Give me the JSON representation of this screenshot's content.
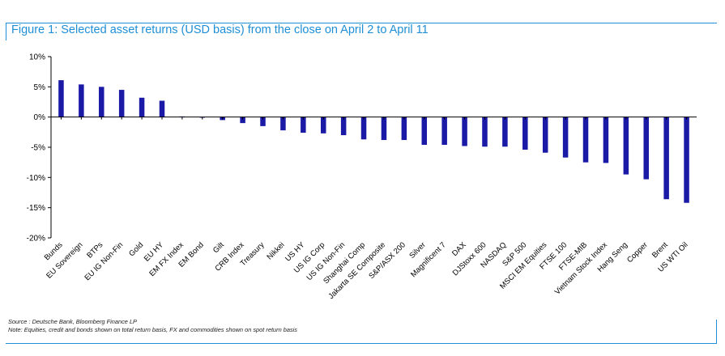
{
  "title": "Figure 1: Selected asset returns (USD basis) from the close on April 2 to April 11",
  "source": "Source : Deutsche Bank, Bloomberg Finance LP",
  "note": "Note: Equities, credit and bonds shown on total return basis, FX and commodities shown on spot return basis",
  "colors": {
    "bar": "#1a1aa6",
    "title": "#1f8fd6",
    "frame": "#1f8fd6"
  },
  "chart_data": {
    "type": "bar",
    "title": "Figure 1: Selected asset returns (USD basis) from the close on April 2 to April 11",
    "xlabel": "",
    "ylabel": "",
    "ylim": [
      -20,
      10
    ],
    "yticks": [
      10,
      5,
      0,
      -5,
      -10,
      -15,
      -20
    ],
    "ytick_labels": [
      "10%",
      "5%",
      "0%",
      "-5%",
      "-10%",
      "-15%",
      "-20%"
    ],
    "grid": false,
    "legend": "none",
    "categories": [
      "Bunds",
      "EU Sovereign",
      "BTPs",
      "EU IG Non-Fin",
      "Gold",
      "EU HY",
      "EM FX Index",
      "EM Bond",
      "Gilt",
      "CRB Index",
      "Treasury",
      "Nikkei",
      "US HY",
      "US IG Corp",
      "US IG Non-Fin",
      "Shanghai Comp",
      "Jakarta SE Composite",
      "S&P/ASX 200",
      "Silver",
      "Magnificent 7",
      "DAX",
      "DJStoxx 600",
      "NASDAQ",
      "S&P 500",
      "MSCI EM Equities",
      "FTSE 100",
      "FTSE-MIB",
      "Vietnam Stock Index",
      "Hang Seng",
      "Copper",
      "Brent",
      "US WTI Oil"
    ],
    "values": [
      6.1,
      5.4,
      5.0,
      4.5,
      3.2,
      2.7,
      0.1,
      -0.1,
      -0.5,
      -1.0,
      -1.5,
      -2.2,
      -2.6,
      -2.7,
      -3.0,
      -3.7,
      -3.8,
      -3.8,
      -4.6,
      -4.6,
      -4.8,
      -4.9,
      -4.9,
      -5.4,
      -5.9,
      -6.7,
      -7.5,
      -7.6,
      -9.5,
      -10.3,
      -13.6,
      -14.2
    ]
  }
}
